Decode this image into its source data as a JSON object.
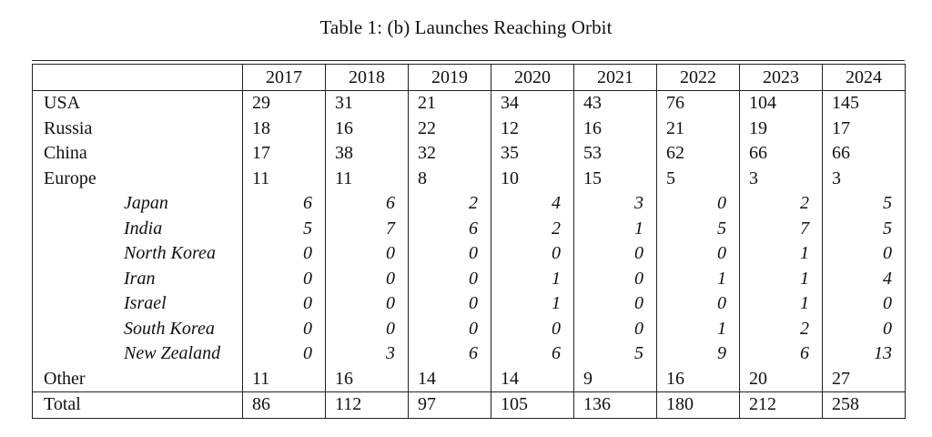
{
  "caption": "Table 1: (b) Launches Reaching Orbit",
  "years": [
    "2017",
    "2018",
    "2019",
    "2020",
    "2021",
    "2022",
    "2023",
    "2024"
  ],
  "rows": [
    {
      "label": "USA",
      "sub": false,
      "values": [
        "29",
        "31",
        "21",
        "34",
        "43",
        "76",
        "104",
        "145"
      ]
    },
    {
      "label": "Russia",
      "sub": false,
      "values": [
        "18",
        "16",
        "22",
        "12",
        "16",
        "21",
        "19",
        "17"
      ]
    },
    {
      "label": "China",
      "sub": false,
      "values": [
        "17",
        "38",
        "32",
        "35",
        "53",
        "62",
        "66",
        "66"
      ]
    },
    {
      "label": "Europe",
      "sub": false,
      "values": [
        "11",
        "11",
        "8",
        "10",
        "15",
        "5",
        "3",
        "3"
      ]
    },
    {
      "label": "Japan",
      "sub": true,
      "values": [
        "6",
        "6",
        "2",
        "4",
        "3",
        "0",
        "2",
        "5"
      ]
    },
    {
      "label": "India",
      "sub": true,
      "values": [
        "5",
        "7",
        "6",
        "2",
        "1",
        "5",
        "7",
        "5"
      ]
    },
    {
      "label": "North Korea",
      "sub": true,
      "values": [
        "0",
        "0",
        "0",
        "0",
        "0",
        "0",
        "1",
        "0"
      ]
    },
    {
      "label": "Iran",
      "sub": true,
      "values": [
        "0",
        "0",
        "0",
        "1",
        "0",
        "1",
        "1",
        "4"
      ]
    },
    {
      "label": "Israel",
      "sub": true,
      "values": [
        "0",
        "0",
        "0",
        "1",
        "0",
        "0",
        "1",
        "0"
      ]
    },
    {
      "label": "South Korea",
      "sub": true,
      "values": [
        "0",
        "0",
        "0",
        "0",
        "0",
        "1",
        "2",
        "0"
      ]
    },
    {
      "label": "New Zealand",
      "sub": true,
      "values": [
        "0",
        "3",
        "6",
        "6",
        "5",
        "9",
        "6",
        "13"
      ]
    },
    {
      "label": "Other",
      "sub": false,
      "values": [
        "11",
        "16",
        "14",
        "14",
        "9",
        "16",
        "20",
        "27"
      ]
    }
  ],
  "total": {
    "label": "Total",
    "values": [
      "86",
      "112",
      "97",
      "105",
      "136",
      "180",
      "212",
      "258"
    ]
  }
}
